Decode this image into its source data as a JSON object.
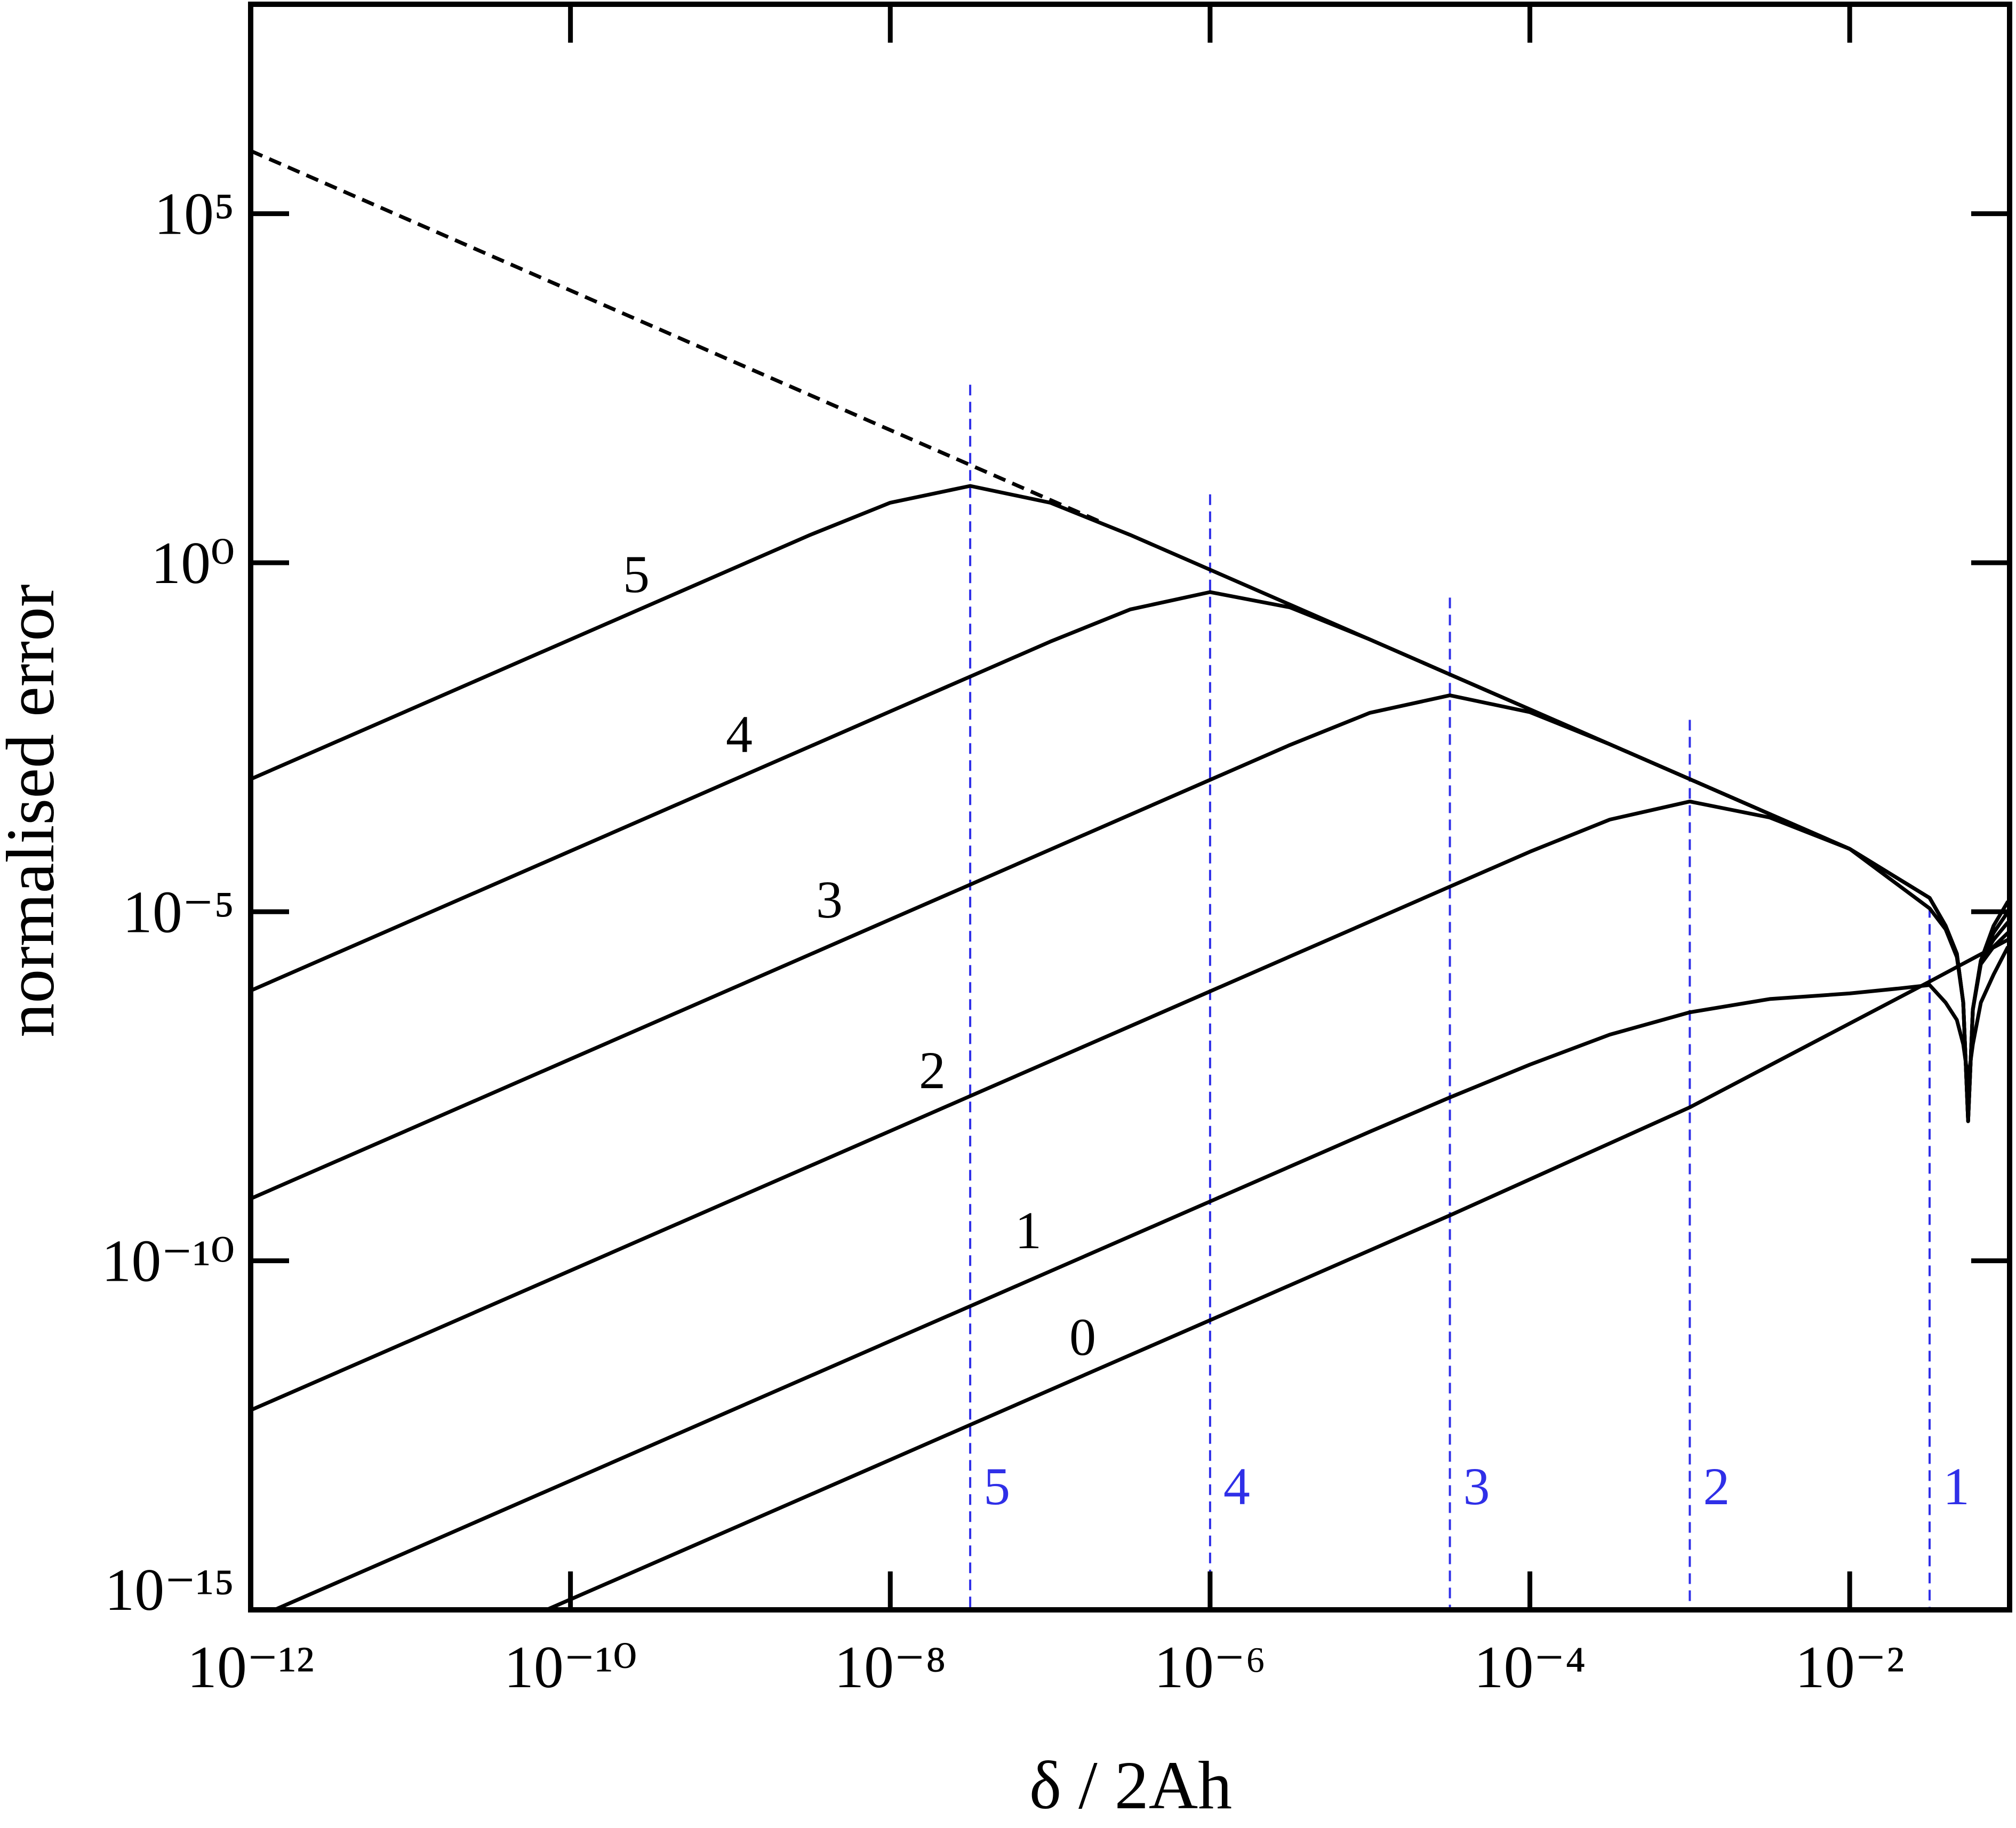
{
  "chart_data": {
    "type": "line",
    "x_label": "δ / 2Ah",
    "y_label": "normalised error",
    "xlog": true,
    "ylog": true,
    "xlim": [
      1e-12,
      0.1
    ],
    "ylim": [
      1e-15,
      100000000.0
    ],
    "xticks": [
      {
        "value": 1e-12,
        "label": "10⁻¹²"
      },
      {
        "value": 1e-10,
        "label": "10⁻¹⁰"
      },
      {
        "value": 1e-08,
        "label": "10⁻⁸"
      },
      {
        "value": 1e-06,
        "label": "10⁻⁶"
      },
      {
        "value": 0.0001,
        "label": "10⁻⁴"
      },
      {
        "value": 0.01,
        "label": "10⁻²"
      }
    ],
    "yticks": [
      {
        "value": 1e-15,
        "label": "10⁻¹⁵"
      },
      {
        "value": 1e-10,
        "label": "10⁻¹⁰"
      },
      {
        "value": 1e-05,
        "label": "10⁻⁵"
      },
      {
        "value": 1,
        "label": "10⁰"
      },
      {
        "value": 100000.0,
        "label": "10⁵"
      }
    ],
    "series": [
      {
        "name": "0",
        "color": "#000000",
        "x": [
          7.08e-11,
          1e-09,
          1e-08,
          3.16e-08,
          1e-06,
          3.16e-05,
          0.001,
          0.0316,
          0.0977
        ],
        "values": [
          1e-15,
          1.41e-14,
          1.41e-13,
          4.47e-13,
          1.41e-11,
          4.47e-10,
          1.58e-08,
          1e-06,
          3.98e-06
        ]
      },
      {
        "name": "1",
        "color": "#000000",
        "x": [
          1.41e-12,
          1e-11,
          1e-10,
          1e-09,
          1e-08,
          1e-07,
          1e-06,
          1e-05,
          3.16e-05,
          0.0001,
          0.000316,
          0.001,
          0.00316,
          0.01,
          0.02,
          0.0316,
          0.0398,
          0.0468,
          0.0513,
          0.055,
          0.0589,
          0.0661,
          0.0794,
          0.0977
        ],
        "values": [
          1e-15,
          7.08e-15,
          7.08e-14,
          7.08e-13,
          7.08e-12,
          7.08e-11,
          7.08e-10,
          7.08e-09,
          2.19e-08,
          6.46e-08,
          1.74e-07,
          3.63e-07,
          5.62e-07,
          6.76e-07,
          7.94e-07,
          8.91e-07,
          5.01e-07,
          2.82e-07,
          1.26e-07,
          3.98e-08,
          1.26e-07,
          5.01e-07,
          1.26e-06,
          3.16e-06
        ]
      },
      {
        "name": "2",
        "color": "#000000",
        "x": [
          1e-12,
          1e-11,
          1e-10,
          1e-09,
          3.16e-09,
          1e-08,
          3.16e-08,
          1e-07,
          3.16e-07,
          1e-06,
          3.16e-06,
          1e-05,
          3.16e-05,
          0.0001,
          0.000316,
          0.001,
          0.00316,
          0.01,
          0.0316,
          0.0398,
          0.0468,
          0.0513,
          0.055,
          0.0589,
          0.0661,
          0.0794,
          0.0977
        ],
        "values": [
          7.24e-13,
          7.24e-12,
          7.24e-11,
          7.24e-10,
          2.29e-09,
          7.24e-09,
          2.29e-08,
          7.24e-08,
          2.29e-07,
          7.24e-07,
          2.29e-06,
          7.24e-06,
          2.29e-05,
          7.24e-05,
          0.000209,
          0.00038,
          0.000224,
          7.94e-05,
          1.12e-05,
          5.62e-06,
          2.24e-06,
          5.01e-07,
          1e-08,
          3.98e-07,
          1.78e-06,
          3.16e-06,
          5.01e-06
        ]
      },
      {
        "name": "3",
        "color": "#000000",
        "x": [
          1e-12,
          1e-11,
          1e-10,
          1e-09,
          3.16e-09,
          1e-08,
          3.16e-08,
          1e-07,
          3.16e-07,
          1e-06,
          3.16e-06,
          1e-05,
          3.16e-05,
          0.0001,
          0.000316,
          0.001,
          0.00316,
          0.01,
          0.0316,
          0.0398,
          0.0468,
          0.0513,
          0.055,
          0.0589,
          0.0661,
          0.0794,
          0.0977
        ],
        "values": [
          7.76e-10,
          7.76e-09,
          7.76e-08,
          7.76e-07,
          2.45e-06,
          7.76e-06,
          2.45e-05,
          7.76e-05,
          0.000245,
          0.000776,
          0.00245,
          0.00708,
          0.0126,
          0.00724,
          0.00251,
          0.000794,
          0.000251,
          7.94e-05,
          1.58e-05,
          6.31e-06,
          2.51e-06,
          5.01e-07,
          1e-08,
          3.98e-07,
          2e-06,
          3.98e-06,
          7.08e-06
        ]
      },
      {
        "name": "4",
        "color": "#000000",
        "x": [
          1e-12,
          1e-11,
          1e-10,
          1e-09,
          3.16e-09,
          1e-08,
          3.16e-08,
          1e-07,
          3.16e-07,
          1e-06,
          3.16e-06,
          1e-05,
          3.16e-05,
          0.0001,
          0.000316,
          0.001,
          0.00316,
          0.01,
          0.0316,
          0.0398,
          0.0468,
          0.0513,
          0.055,
          0.0589,
          0.0661,
          0.0794,
          0.0977
        ],
        "values": [
          7.41e-07,
          7.41e-06,
          7.41e-05,
          0.000741,
          0.00234,
          0.00741,
          0.0234,
          0.0741,
          0.214,
          0.38,
          0.229,
          0.0794,
          0.0251,
          0.00794,
          0.00251,
          0.000794,
          0.000251,
          7.94e-05,
          1.58e-05,
          6.31e-06,
          2.51e-06,
          5.01e-07,
          1e-08,
          3.98e-07,
          2e-06,
          5.01e-06,
          1e-05
        ]
      },
      {
        "name": "5",
        "color": "#000000",
        "x": [
          1e-12,
          1e-11,
          1e-10,
          1e-09,
          3.16e-09,
          1e-08,
          3.16e-08,
          1e-07,
          3.16e-07,
          1e-06,
          3.16e-06,
          1e-05,
          3.16e-05,
          0.0001,
          0.000316,
          0.001,
          0.00316,
          0.01,
          0.0316,
          0.0398,
          0.0468,
          0.0513,
          0.055,
          0.0589,
          0.0661,
          0.0794,
          0.0977
        ],
        "values": [
          0.000794,
          0.00794,
          0.0794,
          0.794,
          2.51,
          7.24,
          12.6,
          7.24,
          2.51,
          0.794,
          0.251,
          0.0794,
          0.0251,
          0.00794,
          0.00251,
          0.000794,
          0.000251,
          7.94e-05,
          1.58e-05,
          6.31e-06,
          2.51e-06,
          5.01e-07,
          1e-08,
          3.98e-07,
          2e-06,
          6.31e-06,
          1.41e-05
        ]
      }
    ],
    "reference_line": {
      "color": "#000000",
      "dashed": true,
      "x": [
        1e-12,
        2e-07
      ],
      "values": [
        794000.0,
        3.98
      ]
    },
    "markers": {
      "color": "#2f2fe8",
      "dashed": true,
      "x": [
        3.16e-08,
        1e-06,
        3.16e-05,
        0.001,
        0.0316
      ],
      "values": [
        355,
        9.55,
        0.316,
        0.00562,
        1.17e-05
      ],
      "labels": [
        "5",
        "4",
        "3",
        "2",
        "1"
      ]
    }
  }
}
